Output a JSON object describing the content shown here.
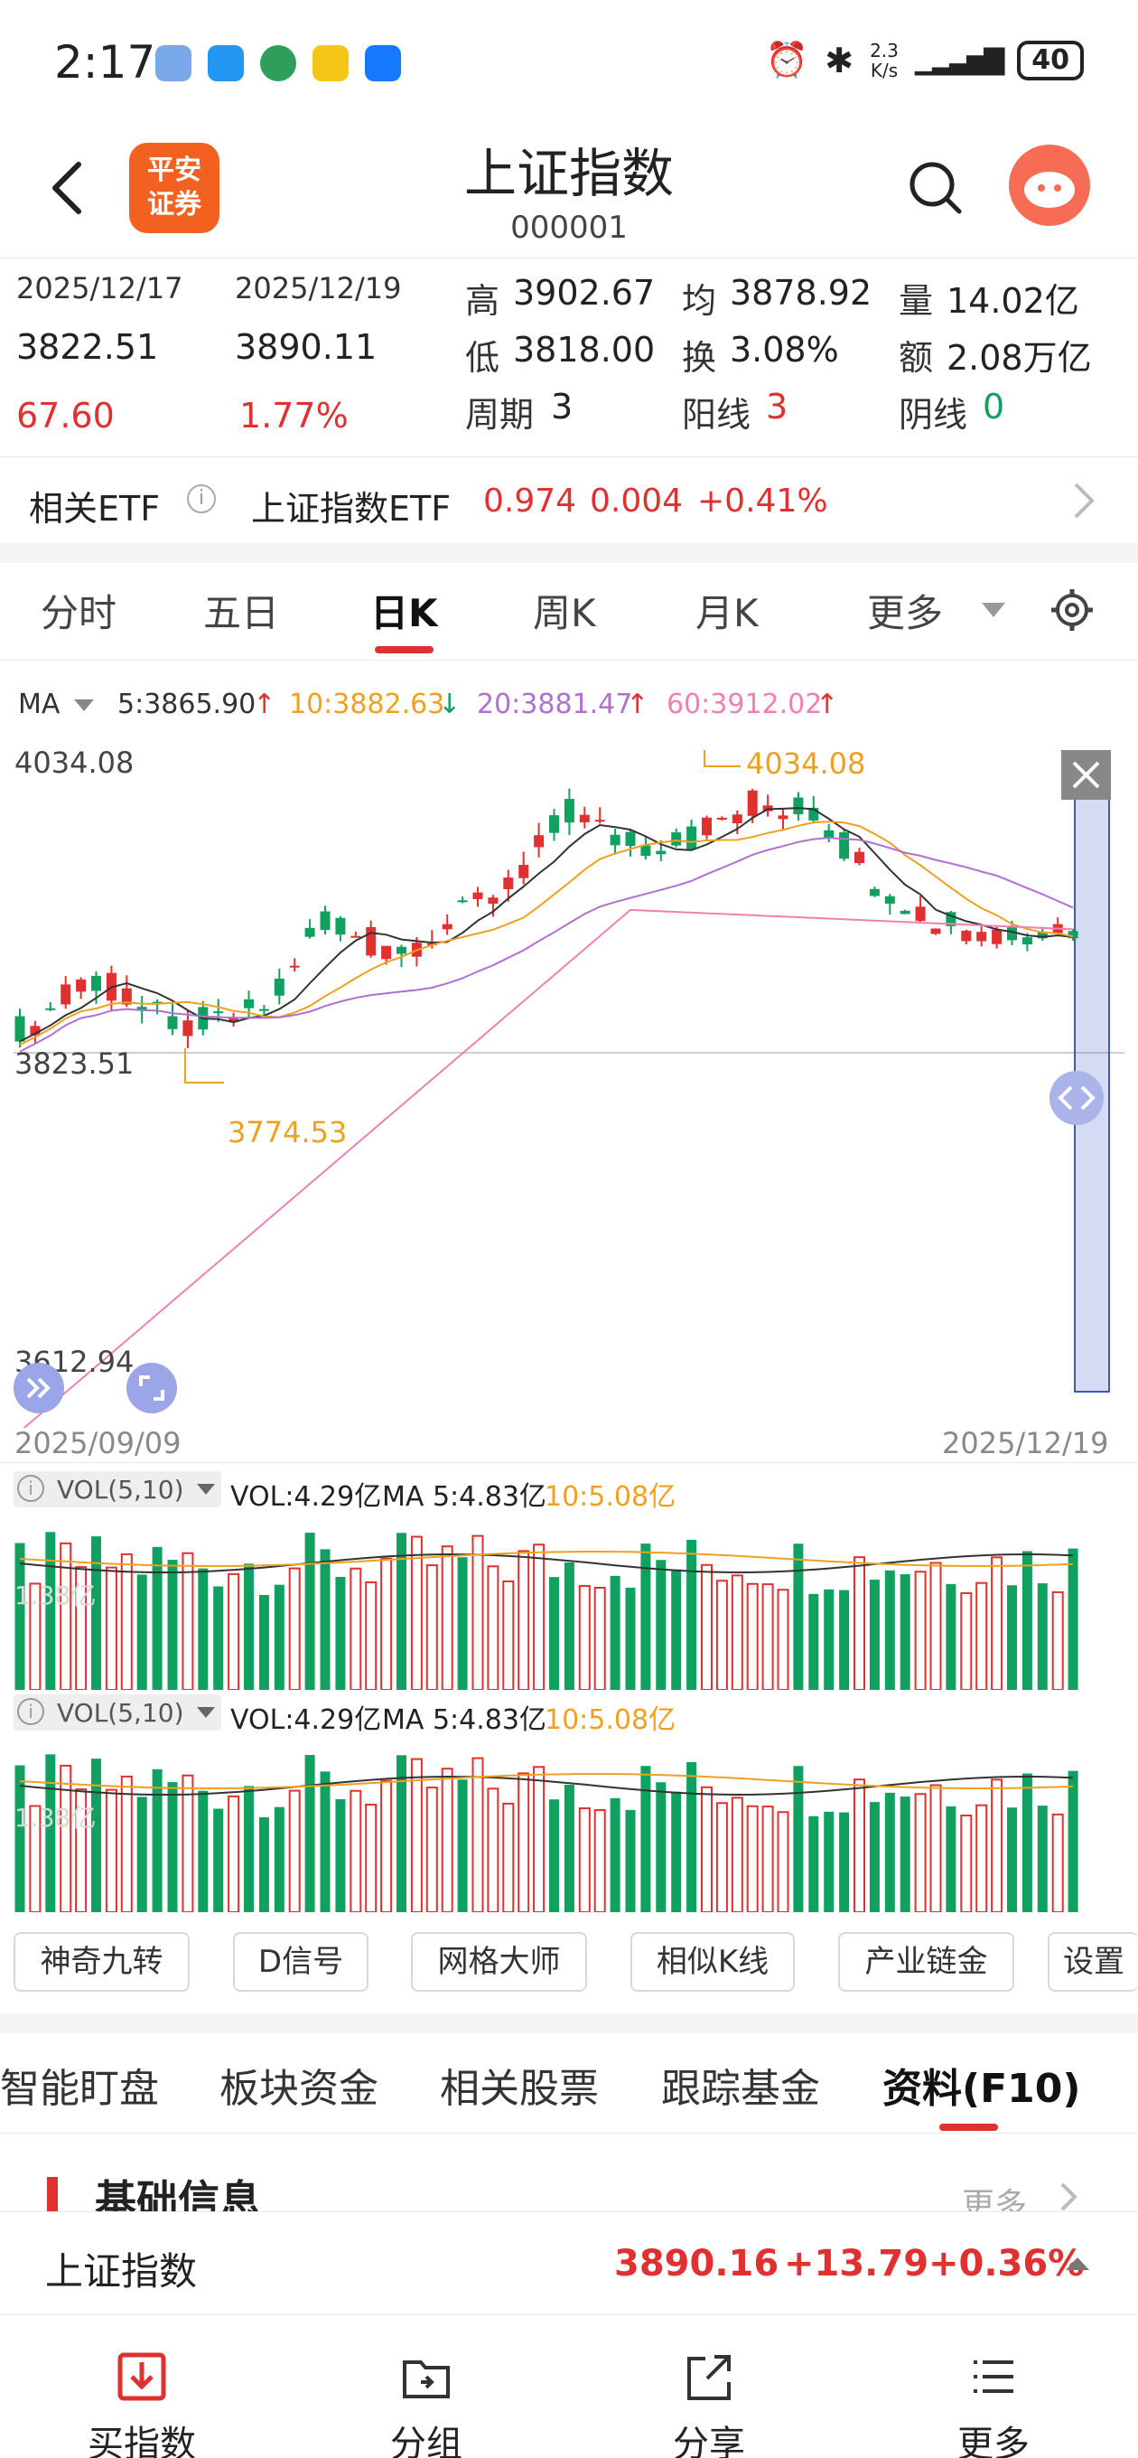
{
  "status_bar": {
    "time": "2:17",
    "net_speed_top": "2.3",
    "net_speed_bottom": "K/s",
    "battery": "40"
  },
  "header": {
    "logo_line1": "平安",
    "logo_line2": "证券",
    "title": "上证指数",
    "code": "000001"
  },
  "stats": {
    "date1": "2025/12/17",
    "date2": "2025/12/19",
    "price1": "3822.51",
    "price2": "3890.11",
    "change_abs": "67.60",
    "change_pct": "1.77%",
    "high_label": "高",
    "high": "3902.67",
    "low_label": "低",
    "low": "3818.00",
    "period_label": "周期",
    "period": "3",
    "avg_label": "均",
    "avg": "3878.92",
    "turnover_label": "换",
    "turnover": "3.08%",
    "yang_label": "阳线",
    "yang": "3",
    "volume_label": "量",
    "volume": "14.02亿",
    "amount_label": "额",
    "amount": "2.08万亿",
    "yin_label": "阴线",
    "yin": "0"
  },
  "etf": {
    "label": "相关ETF",
    "name": "上证指数ETF",
    "price": "0.974",
    "change": "0.004",
    "pct": "+0.41%"
  },
  "ktabs": [
    "分时",
    "五日",
    "日K",
    "周K",
    "月K",
    "更多"
  ],
  "ma_legend": {
    "ma": "MA",
    "ma5": "5:3865.90",
    "ma10": "10:3882.63",
    "ma20": "20:3881.47",
    "ma60": "60:3912.02"
  },
  "chart": {
    "top_price": "4034.08",
    "mid_price": "3823.51",
    "bottom_price": "3612.94",
    "max_marker": "4034.08",
    "min_marker": "3774.53",
    "date_start": "2025/09/09",
    "date_end": "2025/12/19"
  },
  "vol_legend": {
    "name": "VOL(5,10)",
    "vol": "VOL:4.29亿",
    "ma5": "MA 5:4.83亿",
    "ma10": "10:5.08亿",
    "axis_label": "1.38亿"
  },
  "tools": [
    "神奇九转",
    "D信号",
    "网格大师",
    "相似K线",
    "产业链金",
    "设置"
  ],
  "ftabs": [
    "智能盯盘",
    "板块资金",
    "相关股票",
    "跟踪基金",
    "资料(F10)"
  ],
  "section": {
    "title": "基础信息",
    "more": "更多"
  },
  "ticker": {
    "name": "上证指数",
    "price": "3890.16",
    "change": "+13.79",
    "pct": "+0.36%"
  },
  "bottom_nav": [
    "买指数",
    "分组",
    "分享",
    "更多"
  ],
  "colors": {
    "up": "#e03030",
    "down": "#10a060",
    "ma5": "#333333",
    "ma10": "#f0a020",
    "ma20": "#b070d0",
    "ma60": "#f080b0",
    "accent": "#f2611f"
  }
}
